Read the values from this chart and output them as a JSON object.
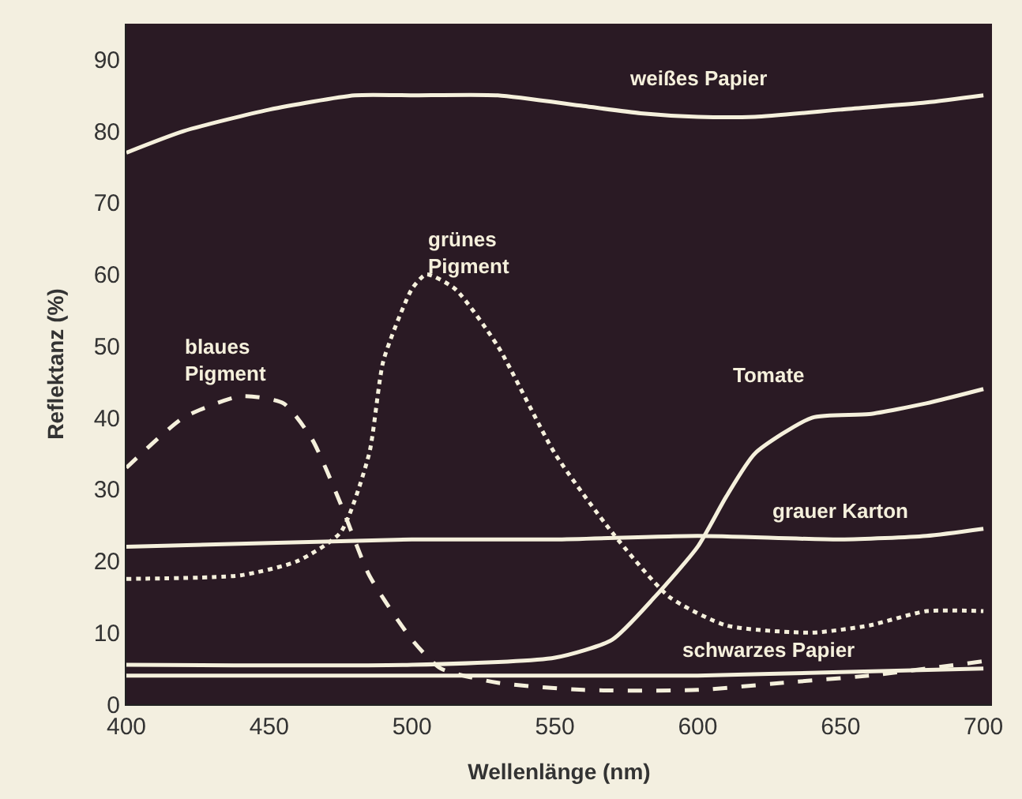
{
  "chart_data": {
    "type": "line",
    "xlabel": "Wellenlänge (nm)",
    "ylabel": "Reflektanz (%)",
    "xlim": [
      400,
      703
    ],
    "ylim": [
      0,
      95
    ],
    "xticks": [
      400,
      450,
      500,
      550,
      600,
      650,
      700
    ],
    "yticks": [
      0,
      10,
      20,
      30,
      40,
      50,
      60,
      70,
      80,
      90
    ],
    "grid": false,
    "legend": false,
    "series": [
      {
        "name": "weißes Papier",
        "color": "#f5f0dc",
        "line_style": "solid",
        "x": [
          400,
          420,
          450,
          480,
          500,
          530,
          560,
          580,
          600,
          620,
          650,
          680,
          700
        ],
        "values": [
          77,
          80,
          83,
          85,
          85,
          85,
          83.5,
          82.5,
          82,
          82,
          83,
          84,
          85
        ]
      },
      {
        "name": "grünes Pigment",
        "color": "#f5f0dc",
        "line_style": "dotted",
        "x": [
          400,
          440,
          460,
          475,
          485,
          490,
          500,
          505,
          515,
          530,
          550,
          570,
          590,
          610,
          640,
          660,
          680,
          700
        ],
        "values": [
          17.5,
          18,
          20,
          24,
          35,
          48,
          58,
          60,
          58,
          50,
          35,
          24,
          15,
          11,
          10,
          11,
          13,
          13
        ]
      },
      {
        "name": "blaues Pigment",
        "color": "#f5f0dc",
        "line_style": "dashed",
        "x": [
          400,
          420,
          440,
          455,
          465,
          475,
          485,
          500,
          510,
          530,
          560,
          600,
          630,
          660,
          700
        ],
        "values": [
          33,
          40,
          43,
          42,
          37,
          28,
          18,
          9,
          5,
          3,
          2,
          2,
          3,
          4,
          6
        ]
      },
      {
        "name": "Tomate",
        "color": "#f5f0dc",
        "line_style": "solid",
        "x": [
          400,
          500,
          550,
          570,
          585,
          600,
          610,
          620,
          640,
          660,
          680,
          700
        ],
        "values": [
          5.5,
          5.5,
          6.5,
          9,
          15,
          22,
          29,
          35,
          40,
          40.5,
          42,
          44
        ]
      },
      {
        "name": "grauer Karton",
        "color": "#f5f0dc",
        "line_style": "solid",
        "x": [
          400,
          450,
          500,
          550,
          600,
          650,
          680,
          700
        ],
        "values": [
          22,
          22.5,
          23,
          23,
          23.5,
          23,
          23.5,
          24.5
        ]
      },
      {
        "name": "schwarzes Papier",
        "color": "#f5f0dc",
        "line_style": "solid",
        "x": [
          400,
          450,
          500,
          550,
          600,
          650,
          700
        ],
        "values": [
          4,
          4,
          4,
          4,
          4,
          4.5,
          5
        ]
      }
    ]
  }
}
